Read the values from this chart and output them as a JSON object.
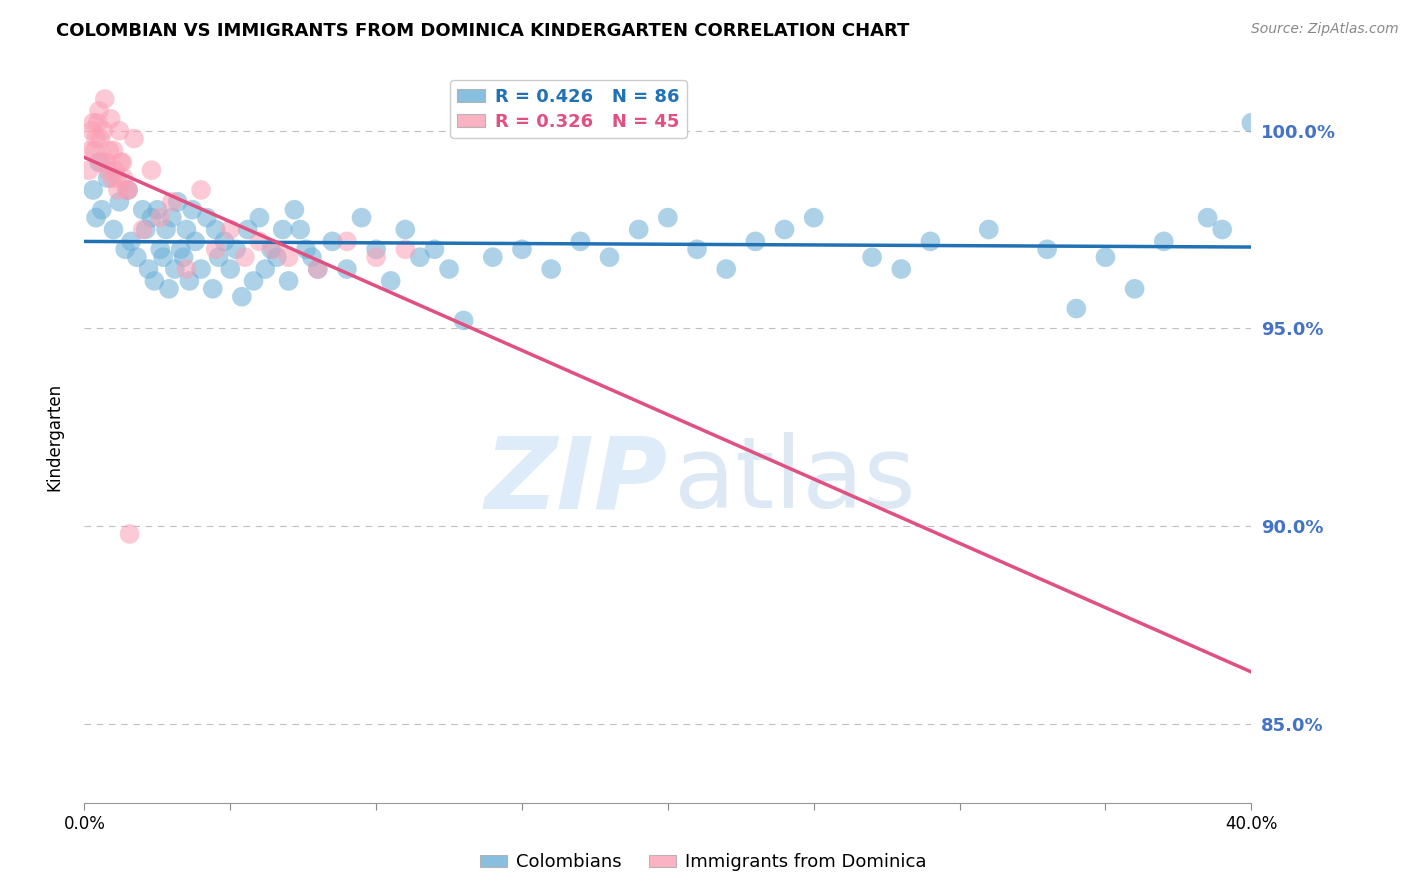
{
  "title": "COLOMBIAN VS IMMIGRANTS FROM DOMINICA KINDERGARTEN CORRELATION CHART",
  "source": "Source: ZipAtlas.com",
  "ylabel": "Kindergarten",
  "xlim": [
    0.0,
    40.0
  ],
  "ylim": [
    83.0,
    101.5
  ],
  "yticks": [
    85.0,
    90.0,
    95.0,
    100.0
  ],
  "right_ytick_labels": [
    "85.0%",
    "90.0%",
    "95.0%",
    "100.0%"
  ],
  "right_yticks": [
    85.0,
    90.0,
    95.0,
    100.0
  ],
  "colombians_R": 0.426,
  "colombians_N": 86,
  "dominica_R": 0.326,
  "dominica_N": 45,
  "blue_color": "#6baed6",
  "pink_color": "#fa9fb5",
  "blue_line_color": "#2171b5",
  "pink_line_color": "#e05080",
  "legend_label_blue": "Colombians",
  "legend_label_pink": "Immigrants from Dominica",
  "blue_scatter_x": [
    0.3,
    0.4,
    0.5,
    0.6,
    0.8,
    1.0,
    1.2,
    1.4,
    1.5,
    1.6,
    1.8,
    2.0,
    2.1,
    2.2,
    2.3,
    2.4,
    2.5,
    2.6,
    2.7,
    2.8,
    2.9,
    3.0,
    3.1,
    3.2,
    3.3,
    3.4,
    3.5,
    3.6,
    3.7,
    3.8,
    4.0,
    4.2,
    4.4,
    4.5,
    4.6,
    4.8,
    5.0,
    5.2,
    5.4,
    5.6,
    5.8,
    6.0,
    6.2,
    6.4,
    6.6,
    6.8,
    7.0,
    7.2,
    7.4,
    7.6,
    7.8,
    8.0,
    8.5,
    9.0,
    9.5,
    10.0,
    10.5,
    11.0,
    11.5,
    12.0,
    12.5,
    13.0,
    14.0,
    15.0,
    16.0,
    17.0,
    18.0,
    19.0,
    20.0,
    21.0,
    22.0,
    23.0,
    24.0,
    25.0,
    27.0,
    29.0,
    31.0,
    33.0,
    35.0,
    37.0,
    39.0,
    40.0,
    38.5,
    36.0,
    34.0,
    28.0
  ],
  "blue_scatter_y": [
    98.5,
    97.8,
    99.2,
    98.0,
    98.8,
    97.5,
    98.2,
    97.0,
    98.5,
    97.2,
    96.8,
    98.0,
    97.5,
    96.5,
    97.8,
    96.2,
    98.0,
    97.0,
    96.8,
    97.5,
    96.0,
    97.8,
    96.5,
    98.2,
    97.0,
    96.8,
    97.5,
    96.2,
    98.0,
    97.2,
    96.5,
    97.8,
    96.0,
    97.5,
    96.8,
    97.2,
    96.5,
    97.0,
    95.8,
    97.5,
    96.2,
    97.8,
    96.5,
    97.0,
    96.8,
    97.5,
    96.2,
    98.0,
    97.5,
    97.0,
    96.8,
    96.5,
    97.2,
    96.5,
    97.8,
    97.0,
    96.2,
    97.5,
    96.8,
    97.0,
    96.5,
    95.2,
    96.8,
    97.0,
    96.5,
    97.2,
    96.8,
    97.5,
    97.8,
    97.0,
    96.5,
    97.2,
    97.5,
    97.8,
    96.8,
    97.2,
    97.5,
    97.0,
    96.8,
    97.2,
    97.5,
    100.2,
    97.8,
    96.0,
    95.5,
    96.5
  ],
  "pink_scatter_x": [
    0.2,
    0.3,
    0.4,
    0.5,
    0.6,
    0.7,
    0.8,
    0.9,
    1.0,
    1.1,
    1.2,
    1.3,
    1.5,
    1.7,
    2.0,
    2.3,
    2.6,
    3.0,
    3.5,
    4.0,
    4.5,
    5.0,
    5.5,
    6.0,
    6.5,
    7.0,
    8.0,
    9.0,
    10.0,
    11.0,
    0.15,
    0.25,
    0.35,
    0.45,
    0.55,
    0.65,
    0.75,
    0.85,
    0.95,
    1.05,
    1.15,
    1.25,
    1.35,
    1.45,
    1.55
  ],
  "pink_scatter_y": [
    99.5,
    100.2,
    99.8,
    100.5,
    99.2,
    100.8,
    99.0,
    100.3,
    99.5,
    98.8,
    100.0,
    99.2,
    98.5,
    99.8,
    97.5,
    99.0,
    97.8,
    98.2,
    96.5,
    98.5,
    97.0,
    97.5,
    96.8,
    97.2,
    97.0,
    96.8,
    96.5,
    97.2,
    96.8,
    97.0,
    99.0,
    100.0,
    99.5,
    100.2,
    99.8,
    100.0,
    99.2,
    99.5,
    98.8,
    99.0,
    98.5,
    99.2,
    98.8,
    98.5,
    89.8
  ]
}
